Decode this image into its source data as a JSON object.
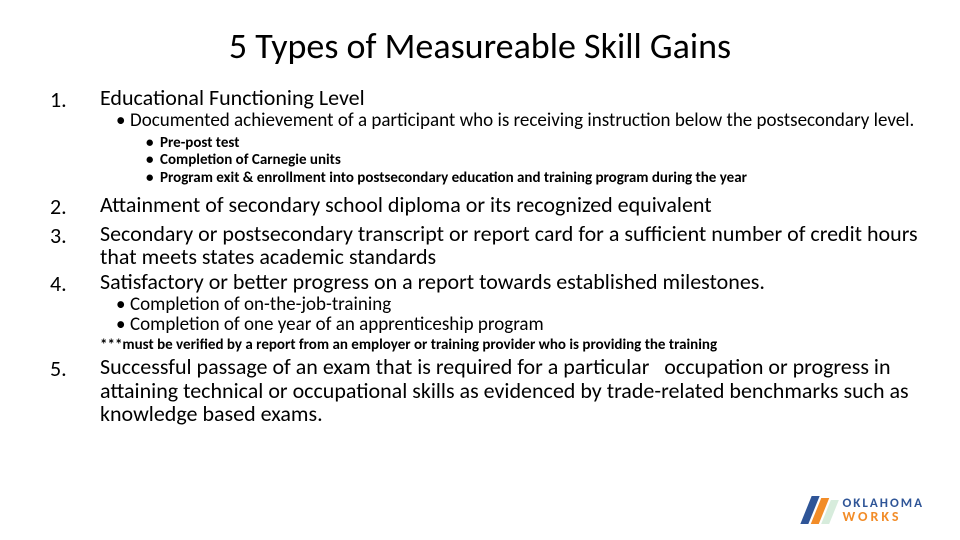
{
  "title": "5 Types of Measureable Skill Gains",
  "items": [
    {
      "num": "1.",
      "text": "Educational Functioning Level",
      "sub1": [
        "Documented achievement of a participant who is receiving instruction below the postsecondary level."
      ],
      "sub2": [
        "Pre-post test",
        "Completion of Carnegie units",
        "Program exit & enrollment into postsecondary education and training program during the year"
      ]
    },
    {
      "num": "2.",
      "text": "Attainment of secondary school diploma or its recognized equivalent"
    },
    {
      "num": "3.",
      "text": "Secondary or postsecondary transcript or report card for a sufficient number of credit hours that meets states academic standards"
    },
    {
      "num": "4.",
      "text": "Satisfactory or better progress on a report towards established milestones.",
      "sub1": [
        "Completion of on-the-job-training",
        "Completion of one year of an apprenticeship program"
      ],
      "note": "***must be verified by a report from an employer or training provider who is providing the training"
    },
    {
      "num": "5.",
      "text": "Successful passage of an exam that is required for a particular   occupation or progress in attaining technical or occupational skills as evidenced by trade-related benchmarks such as knowledge based exams."
    }
  ],
  "logo": {
    "line1": "OKLAHOMA",
    "line2": "WORKS",
    "colors": {
      "blue": "#2f5597",
      "orange": "#f28c28",
      "mint": "#d7ecdc"
    }
  }
}
